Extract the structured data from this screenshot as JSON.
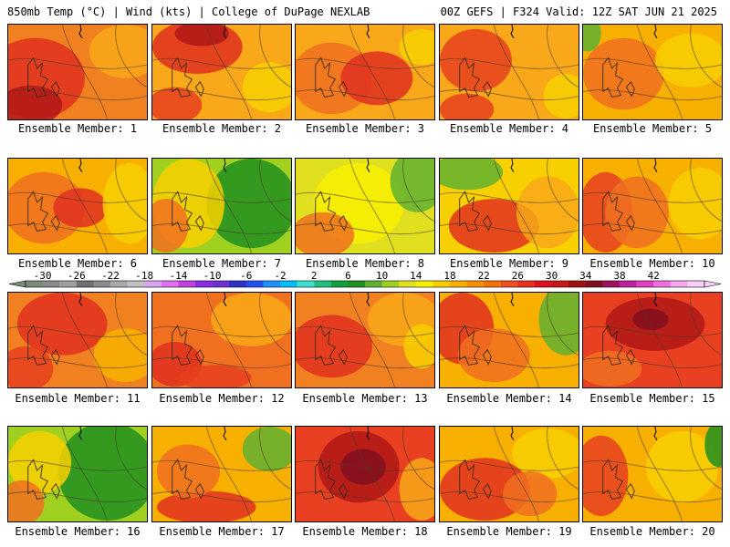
{
  "header": {
    "left": "850mb Temp (°C) | Wind (kts) | College of DuPage NEXLAB",
    "right": "00Z GEFS | F324 Valid: 12Z SAT JUN 21 2025"
  },
  "legend": {
    "ticks": [
      "-30",
      "-26",
      "-22",
      "-18",
      "-14",
      "-10",
      "-6",
      "-2",
      "2",
      "6",
      "10",
      "14",
      "18",
      "22",
      "26",
      "30",
      "34",
      "38",
      "42"
    ],
    "colors": [
      "#7b8a78",
      "#8a8a8a",
      "#a0a0a0",
      "#707070",
      "#8c8c8c",
      "#a8a8a8",
      "#c0c0c0",
      "#d7a8f0",
      "#e070f0",
      "#c040e0",
      "#8a2be2",
      "#7030d0",
      "#3030c8",
      "#2050f0",
      "#1e90ff",
      "#00bfff",
      "#40e0d0",
      "#20c080",
      "#10a040",
      "#209020",
      "#60b030",
      "#a0d020",
      "#e0e020",
      "#f8f000",
      "#f8d000",
      "#f8b000",
      "#f89000",
      "#f87000",
      "#f05020",
      "#e83020",
      "#e01020",
      "#c81818",
      "#a01010",
      "#801020",
      "#a01060",
      "#c020a0",
      "#e040c0",
      "#f070e0",
      "#f8a8f0",
      "#f8d0f8"
    ]
  },
  "members": [
    {
      "label": "Ensemble Member: 1",
      "base": "#f08020",
      "blobs": [
        {
          "c": "#e03020",
          "x": 30,
          "y": 60,
          "rx": 55,
          "ry": 45
        },
        {
          "c": "#b01818",
          "x": 25,
          "y": 90,
          "rx": 35,
          "ry": 22
        },
        {
          "c": "#f8a818",
          "x": 130,
          "y": 30,
          "rx": 40,
          "ry": 30
        }
      ]
    },
    {
      "label": "Ensemble Member: 2",
      "base": "#f8a818",
      "blobs": [
        {
          "c": "#e03020",
          "x": 50,
          "y": 25,
          "rx": 50,
          "ry": 30
        },
        {
          "c": "#b01818",
          "x": 55,
          "y": 10,
          "rx": 30,
          "ry": 14
        },
        {
          "c": "#e84020",
          "x": 25,
          "y": 90,
          "rx": 30,
          "ry": 20
        },
        {
          "c": "#f8d000",
          "x": 130,
          "y": 70,
          "rx": 30,
          "ry": 28
        }
      ]
    },
    {
      "label": "Ensemble Member: 3",
      "base": "#f8a818",
      "blobs": [
        {
          "c": "#f07020",
          "x": 40,
          "y": 60,
          "rx": 45,
          "ry": 40
        },
        {
          "c": "#e03020",
          "x": 90,
          "y": 60,
          "rx": 40,
          "ry": 30
        },
        {
          "c": "#f8d000",
          "x": 140,
          "y": 25,
          "rx": 25,
          "ry": 20
        }
      ]
    },
    {
      "label": "Ensemble Member: 4",
      "base": "#f8a818",
      "blobs": [
        {
          "c": "#e84020",
          "x": 40,
          "y": 40,
          "rx": 40,
          "ry": 35
        },
        {
          "c": "#e84020",
          "x": 30,
          "y": 95,
          "rx": 30,
          "ry": 18
        },
        {
          "c": "#f8d000",
          "x": 140,
          "y": 80,
          "rx": 25,
          "ry": 25
        }
      ]
    },
    {
      "label": "Ensemble Member: 5",
      "base": "#f8b000",
      "blobs": [
        {
          "c": "#f07020",
          "x": 45,
          "y": 55,
          "rx": 45,
          "ry": 40
        },
        {
          "c": "#60b030",
          "x": 5,
          "y": 10,
          "rx": 15,
          "ry": 20
        },
        {
          "c": "#f8d000",
          "x": 120,
          "y": 40,
          "rx": 40,
          "ry": 30
        }
      ]
    },
    {
      "label": "Ensemble Member: 6",
      "base": "#f8b000",
      "blobs": [
        {
          "c": "#f07020",
          "x": 40,
          "y": 55,
          "rx": 45,
          "ry": 40
        },
        {
          "c": "#e03020",
          "x": 80,
          "y": 55,
          "rx": 30,
          "ry": 22
        },
        {
          "c": "#f8d000",
          "x": 135,
          "y": 50,
          "rx": 30,
          "ry": 45
        }
      ]
    },
    {
      "label": "Ensemble Member: 7",
      "base": "#a0d020",
      "blobs": [
        {
          "c": "#209020",
          "x": 110,
          "y": 50,
          "rx": 50,
          "ry": 50
        },
        {
          "c": "#f8d000",
          "x": 40,
          "y": 50,
          "rx": 40,
          "ry": 50
        },
        {
          "c": "#f07020",
          "x": 15,
          "y": 75,
          "rx": 25,
          "ry": 30
        }
      ]
    },
    {
      "label": "Ensemble Member: 8",
      "base": "#e0e020",
      "blobs": [
        {
          "c": "#f8f000",
          "x": 70,
          "y": 50,
          "rx": 50,
          "ry": 45
        },
        {
          "c": "#60b030",
          "x": 135,
          "y": 25,
          "rx": 30,
          "ry": 35
        },
        {
          "c": "#f07020",
          "x": 30,
          "y": 85,
          "rx": 35,
          "ry": 25
        }
      ]
    },
    {
      "label": "Ensemble Member: 9",
      "base": "#f8d000",
      "blobs": [
        {
          "c": "#60b030",
          "x": 30,
          "y": 15,
          "rx": 40,
          "ry": 20
        },
        {
          "c": "#e03020",
          "x": 60,
          "y": 75,
          "rx": 50,
          "ry": 30
        },
        {
          "c": "#f8a818",
          "x": 120,
          "y": 60,
          "rx": 35,
          "ry": 40
        }
      ]
    },
    {
      "label": "Ensemble Member: 10",
      "base": "#f8b000",
      "blobs": [
        {
          "c": "#e84020",
          "x": 25,
          "y": 60,
          "rx": 30,
          "ry": 45
        },
        {
          "c": "#f07020",
          "x": 60,
          "y": 60,
          "rx": 35,
          "ry": 40
        },
        {
          "c": "#f8d000",
          "x": 130,
          "y": 50,
          "rx": 35,
          "ry": 40
        }
      ]
    },
    {
      "label": "Ensemble Member: 11",
      "base": "#f08020",
      "blobs": [
        {
          "c": "#e03020",
          "x": 60,
          "y": 35,
          "rx": 50,
          "ry": 35
        },
        {
          "c": "#e84020",
          "x": 20,
          "y": 85,
          "rx": 30,
          "ry": 25
        },
        {
          "c": "#f8b000",
          "x": 130,
          "y": 70,
          "rx": 35,
          "ry": 30
        }
      ]
    },
    {
      "label": "Ensemble Member: 12",
      "base": "#f07020",
      "blobs": [
        {
          "c": "#e03020",
          "x": 25,
          "y": 80,
          "rx": 30,
          "ry": 25
        },
        {
          "c": "#f8a818",
          "x": 110,
          "y": 30,
          "rx": 45,
          "ry": 30
        },
        {
          "c": "#e84020",
          "x": 70,
          "y": 95,
          "rx": 40,
          "ry": 14
        }
      ]
    },
    {
      "label": "Ensemble Member: 13",
      "base": "#f08020",
      "blobs": [
        {
          "c": "#e03020",
          "x": 40,
          "y": 60,
          "rx": 45,
          "ry": 35
        },
        {
          "c": "#f8a818",
          "x": 120,
          "y": 30,
          "rx": 40,
          "ry": 30
        },
        {
          "c": "#f8d000",
          "x": 140,
          "y": 60,
          "rx": 20,
          "ry": 25
        }
      ]
    },
    {
      "label": "Ensemble Member: 14",
      "base": "#f8b000",
      "blobs": [
        {
          "c": "#e03020",
          "x": 25,
          "y": 40,
          "rx": 35,
          "ry": 40
        },
        {
          "c": "#60b030",
          "x": 140,
          "y": 30,
          "rx": 30,
          "ry": 40
        },
        {
          "c": "#f07020",
          "x": 60,
          "y": 70,
          "rx": 40,
          "ry": 30
        }
      ]
    },
    {
      "label": "Ensemble Member: 15",
      "base": "#e84020",
      "blobs": [
        {
          "c": "#b01818",
          "x": 80,
          "y": 35,
          "rx": 55,
          "ry": 30
        },
        {
          "c": "#801020",
          "x": 75,
          "y": 30,
          "rx": 20,
          "ry": 12
        },
        {
          "c": "#f07020",
          "x": 30,
          "y": 85,
          "rx": 35,
          "ry": 20
        }
      ]
    },
    {
      "label": "Ensemble Member: 16",
      "base": "#a0d020",
      "blobs": [
        {
          "c": "#209020",
          "x": 110,
          "y": 50,
          "rx": 55,
          "ry": 55
        },
        {
          "c": "#f8d000",
          "x": 35,
          "y": 40,
          "rx": 35,
          "ry": 35
        },
        {
          "c": "#f07020",
          "x": 15,
          "y": 85,
          "rx": 25,
          "ry": 25
        }
      ]
    },
    {
      "label": "Ensemble Member: 17",
      "base": "#f8b000",
      "blobs": [
        {
          "c": "#60b030",
          "x": 130,
          "y": 25,
          "rx": 30,
          "ry": 25
        },
        {
          "c": "#e03020",
          "x": 60,
          "y": 90,
          "rx": 55,
          "ry": 18
        },
        {
          "c": "#f07020",
          "x": 40,
          "y": 50,
          "rx": 35,
          "ry": 30
        }
      ]
    },
    {
      "label": "Ensemble Member: 18",
      "base": "#e84020",
      "blobs": [
        {
          "c": "#b01818",
          "x": 70,
          "y": 45,
          "rx": 45,
          "ry": 40
        },
        {
          "c": "#801020",
          "x": 75,
          "y": 45,
          "rx": 25,
          "ry": 20
        },
        {
          "c": "#f8a818",
          "x": 140,
          "y": 70,
          "rx": 25,
          "ry": 35
        }
      ]
    },
    {
      "label": "Ensemble Member: 19",
      "base": "#f8b000",
      "blobs": [
        {
          "c": "#e03020",
          "x": 50,
          "y": 70,
          "rx": 50,
          "ry": 35
        },
        {
          "c": "#f8d000",
          "x": 120,
          "y": 30,
          "rx": 40,
          "ry": 28
        },
        {
          "c": "#f07020",
          "x": 100,
          "y": 75,
          "rx": 30,
          "ry": 25
        }
      ]
    },
    {
      "label": "Ensemble Member: 20",
      "base": "#f8b000",
      "blobs": [
        {
          "c": "#e84020",
          "x": 20,
          "y": 55,
          "rx": 30,
          "ry": 45
        },
        {
          "c": "#f8d000",
          "x": 110,
          "y": 45,
          "rx": 40,
          "ry": 40
        },
        {
          "c": "#209020",
          "x": 150,
          "y": 20,
          "rx": 15,
          "ry": 25
        }
      ]
    }
  ]
}
